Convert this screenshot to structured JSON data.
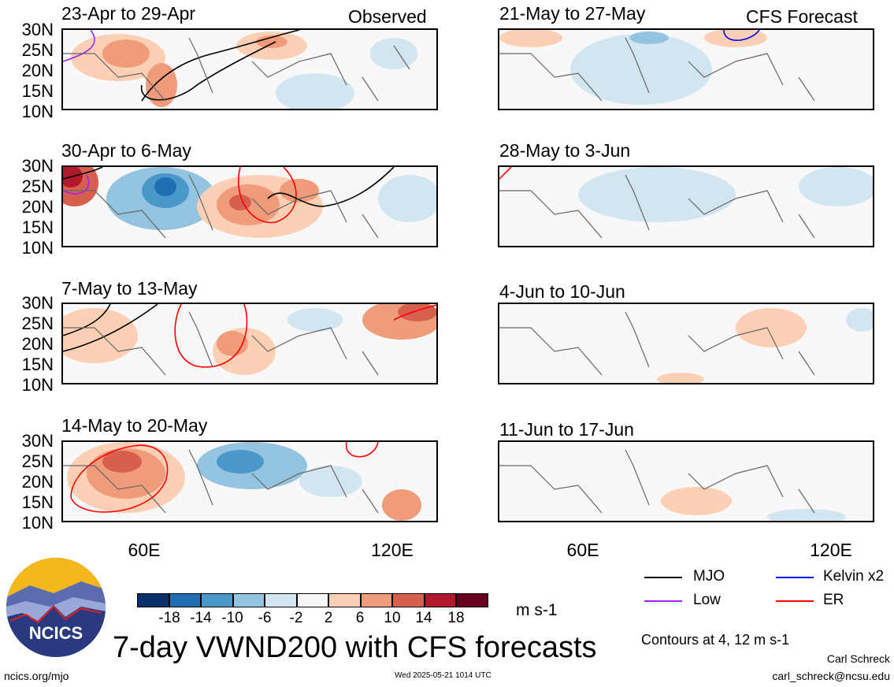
{
  "header": {
    "observed": "Observed",
    "forecast": "CFS Forecast"
  },
  "y_ticks": [
    "30N",
    "25N",
    "20N",
    "15N",
    "10N"
  ],
  "x_ticks": [
    "60E",
    "120E"
  ],
  "panels": {
    "observed": [
      "23-Apr to 29-Apr",
      "30-Apr to 6-May",
      "7-May to 13-May",
      "14-May to 20-May"
    ],
    "forecast": [
      "21-May to 27-May",
      "28-May to 3-Jun",
      "4-Jun to 10-Jun",
      "11-Jun to 17-Jun"
    ]
  },
  "colorbar": {
    "ticks": [
      "-18",
      "-14",
      "-10",
      "-6",
      "-2",
      "2",
      "6",
      "10",
      "14",
      "18"
    ],
    "colors": [
      "#08306b",
      "#1f6fb4",
      "#4a98c9",
      "#94c4df",
      "#d2e6f2",
      "#f7f7f7",
      "#fdd0b5",
      "#f09b7a",
      "#d6604d",
      "#b2182b",
      "#67001f"
    ],
    "units": "m s-1"
  },
  "legend": {
    "mjo": {
      "label": "MJO",
      "color": "#000000"
    },
    "kelvin": {
      "label": "Kelvin x2",
      "color": "#0000ff"
    },
    "low": {
      "label": "Low",
      "color": "#a020f0"
    },
    "er": {
      "label": "ER",
      "color": "#ff0000"
    }
  },
  "contour_note": "Contours at 4, 12 m s-1",
  "title": "7-day VWND200 with CFS forecasts",
  "logo_text": "NCICS",
  "footer": {
    "left": "ncics.org/mjo",
    "timestamp": "Wed 2025-05-21 1014 UTC",
    "author": "Carl Schreck",
    "email": "carl_schreck@ncsu.edu"
  }
}
